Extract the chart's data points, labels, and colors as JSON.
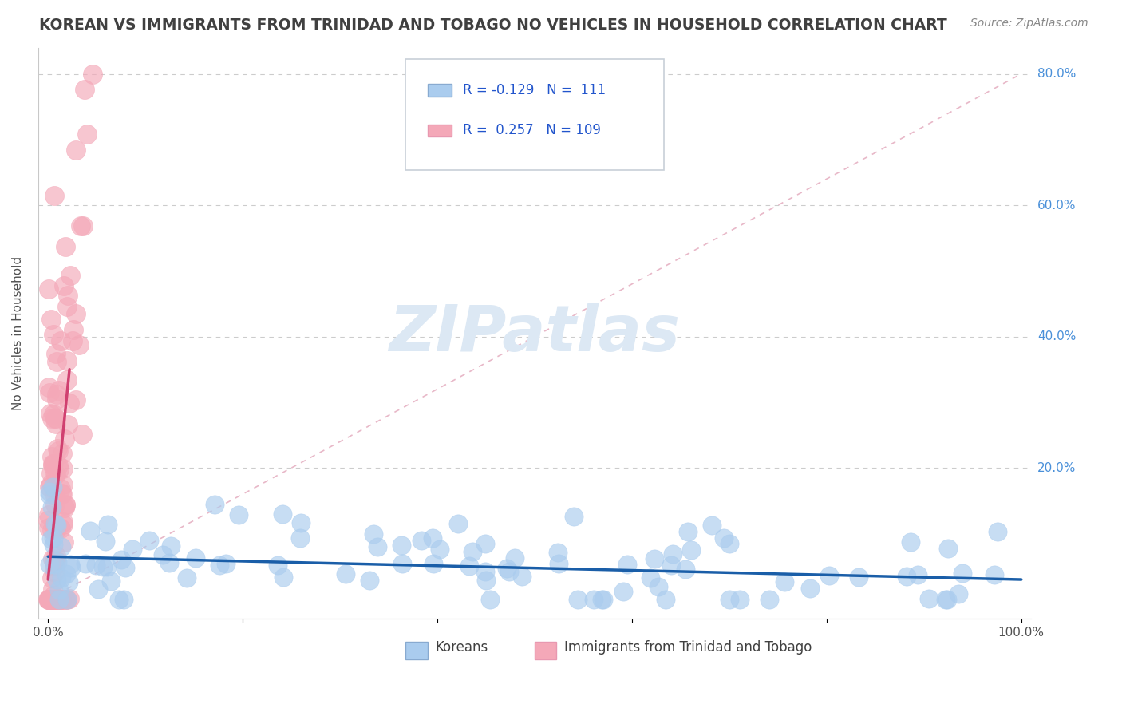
{
  "title": "KOREAN VS IMMIGRANTS FROM TRINIDAD AND TOBAGO NO VEHICLES IN HOUSEHOLD CORRELATION CHART",
  "source_text": "Source: ZipAtlas.com",
  "ylabel": "No Vehicles in Household",
  "xlabel": "",
  "xlim": [
    0.0,
    100.0
  ],
  "ylim": [
    0.0,
    80.0
  ],
  "korean_R": -0.129,
  "korean_N": 111,
  "tt_R": 0.257,
  "tt_N": 109,
  "korean_color": "#aaccee",
  "tt_color": "#f4a8b8",
  "korean_line_color": "#1a5ea8",
  "tt_line_color": "#d04070",
  "tt_dash_color": "#e8b8c8",
  "legend_R_color": "#2255cc",
  "legend_N_color": "#2255cc",
  "watermark_color": "#dce8f4",
  "background_color": "#ffffff",
  "title_color": "#404040",
  "title_fontsize": 13.5,
  "source_fontsize": 10,
  "axis_label_fontsize": 11,
  "tick_fontsize": 11,
  "grid_color": "#cccccc",
  "right_tick_color": "#4a90d9"
}
